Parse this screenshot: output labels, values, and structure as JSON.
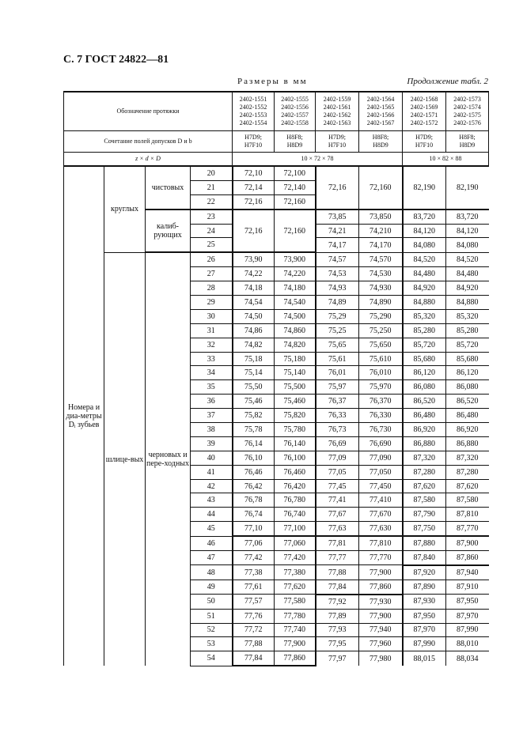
{
  "page_header": "С. 7 ГОСТ 24822—81",
  "units": "Размеры в мм",
  "continuation": "Продолжение табл. 2",
  "header": {
    "designation_label": "Обозначение протяжки",
    "designations": [
      [
        "2402-1551",
        "2402-1552",
        "2402-1553",
        "2402-1554"
      ],
      [
        "2402-1555",
        "2402-1556",
        "2402-1557",
        "2402-1558"
      ],
      [
        "2402-1559",
        "2402-1561",
        "2402-1562",
        "2402-1563"
      ],
      [
        "2402-1564",
        "2402-1565",
        "2402-1566",
        "2402-1567"
      ],
      [
        "2402-1568",
        "2402-1569",
        "2402-1571",
        "2402-1572"
      ],
      [
        "2402-1573",
        "2402-1574",
        "2402-1575",
        "2402-1576"
      ]
    ],
    "tolerance_label": "Сочетание полей допусков D и b",
    "tolerances": [
      [
        "H7D9;",
        "H7F10"
      ],
      [
        "H8F8;",
        "H8D9"
      ],
      [
        "H7D9;",
        "H7F10"
      ],
      [
        "H8F8;",
        "H8D9"
      ],
      [
        "H7D9;",
        "H7F10"
      ],
      [
        "H8F8;",
        "H8D9"
      ]
    ],
    "zdD_label": "z × d × D",
    "size_a": "10 × 72 × 78",
    "size_b": "10 × 82 × 88"
  },
  "labels": {
    "teeth": "Номера и диа-метры Dᵢ зубьев",
    "round": "круглых",
    "spline": "шлице-вых",
    "finishing": "чистовых",
    "calibrating": "калиб-рующих",
    "roughing": "черновых и пере-ходных"
  },
  "merged": {
    "finishing": [
      "72,16",
      "72,160",
      "82,190",
      "82,190"
    ],
    "calibrating": [
      "72,16",
      "72,160"
    ]
  },
  "rows": [
    [
      "20",
      "72,10",
      "72,100"
    ],
    [
      "21",
      "72,14",
      "72,140"
    ],
    [
      "22",
      "72,16",
      "72,160"
    ],
    [
      "23",
      "73,85",
      "73,850",
      "83,720",
      "83,720"
    ],
    [
      "24",
      "74,21",
      "74,210",
      "84,120",
      "84,120"
    ],
    [
      "25",
      "74,17",
      "74,170",
      "84,080",
      "84,080"
    ],
    [
      "26",
      "73,90",
      "73,900",
      "74,57",
      "74,570",
      "84,520",
      "84,520"
    ],
    [
      "27",
      "74,22",
      "74,220",
      "74,53",
      "74,530",
      "84,480",
      "84,480"
    ],
    [
      "28",
      "74,18",
      "74,180",
      "74,93",
      "74,930",
      "84,920",
      "84,920"
    ],
    [
      "29",
      "74,54",
      "74,540",
      "74,89",
      "74,890",
      "84,880",
      "84,880"
    ],
    [
      "30",
      "74,50",
      "74,500",
      "75,29",
      "75,290",
      "85,320",
      "85,320"
    ],
    [
      "31",
      "74,86",
      "74,860",
      "75,25",
      "75,250",
      "85,280",
      "85,280"
    ],
    [
      "32",
      "74,82",
      "74,820",
      "75,65",
      "75,650",
      "85,720",
      "85,720"
    ],
    [
      "33",
      "75,18",
      "75,180",
      "75,61",
      "75,610",
      "85,680",
      "85,680"
    ],
    [
      "34",
      "75,14",
      "75,140",
      "76,01",
      "76,010",
      "86,120",
      "86,120"
    ],
    [
      "35",
      "75,50",
      "75,500",
      "75,97",
      "75,970",
      "86,080",
      "86,080"
    ],
    [
      "36",
      "75,46",
      "75,460",
      "76,37",
      "76,370",
      "86,520",
      "86,520"
    ],
    [
      "37",
      "75,82",
      "75,820",
      "76,33",
      "76,330",
      "86,480",
      "86,480"
    ],
    [
      "38",
      "75,78",
      "75,780",
      "76,73",
      "76,730",
      "86,920",
      "86,920"
    ],
    [
      "39",
      "76,14",
      "76,140",
      "76,69",
      "76,690",
      "86,880",
      "86,880"
    ],
    [
      "40",
      "76,10",
      "76,100",
      "77,09",
      "77,090",
      "87,320",
      "87,320"
    ],
    [
      "41",
      "76,46",
      "76,460",
      "77,05",
      "77,050",
      "87,280",
      "87,280"
    ],
    [
      "42",
      "76,42",
      "76,420",
      "77,45",
      "77,450",
      "87,620",
      "87,620"
    ],
    [
      "43",
      "76,78",
      "76,780",
      "77,41",
      "77,410",
      "87,580",
      "87,580"
    ],
    [
      "44",
      "76,74",
      "76,740",
      "77,67",
      "77,670",
      "87,790",
      "87,810"
    ],
    [
      "45",
      "77,10",
      "77,100",
      "77,63",
      "77,630",
      "87,750",
      "87,770"
    ],
    [
      "46",
      "77,06",
      "77,060",
      "77,81",
      "77,810",
      "87,880",
      "87,900"
    ],
    [
      "47",
      "77,42",
      "77,420",
      "77,77",
      "77,770",
      "87,840",
      "87,860"
    ],
    [
      "48",
      "77,38",
      "77,380",
      "77,88",
      "77,900",
      "87,920",
      "87,940"
    ],
    [
      "49",
      "77,61",
      "77,620",
      "77,84",
      "77,860",
      "87,890",
      "87,910"
    ],
    [
      "50",
      "77,57",
      "77,580",
      "77,92",
      "77,930",
      "87,930",
      "87,950"
    ],
    [
      "51",
      "77,76",
      "77,780",
      "77,89",
      "77,900",
      "87,950",
      "87,970"
    ],
    [
      "52",
      "77,72",
      "77,740",
      "77,93",
      "77,940",
      "87,970",
      "87,990"
    ],
    [
      "53",
      "77,88",
      "77,900",
      "77,95",
      "77,960",
      "87,990",
      "88,010"
    ],
    [
      "54",
      "77,84",
      "77,860",
      "77,97",
      "77,980",
      "88,015",
      "88,034"
    ]
  ]
}
